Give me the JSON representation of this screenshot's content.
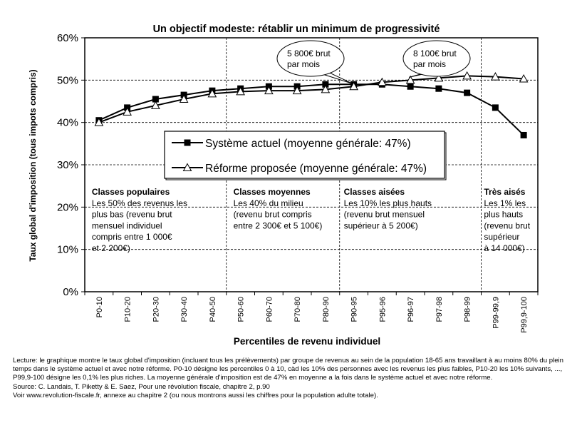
{
  "chart_data": {
    "type": "line",
    "title": "Un objectif modeste: rétablir un minimum de progressivité",
    "xlabel": "Percentiles de revenu individuel",
    "ylabel": "Taux global d'imposition (tous impots compris)",
    "ylim": [
      0,
      60
    ],
    "yticks": [
      "0%",
      "10%",
      "20%",
      "30%",
      "40%",
      "50%",
      "60%"
    ],
    "categories": [
      "P0-10",
      "P10-20",
      "P20-30",
      "P30-40",
      "P40-50",
      "P50-60",
      "P60-70",
      "P70-80",
      "P80-90",
      "P90-95",
      "P95-96",
      "P96-97",
      "P97-98",
      "P98-99",
      "P99-99,9",
      "P99,9-100"
    ],
    "series": [
      {
        "name": "Système actuel (moyenne générale: 47%)",
        "marker": "filled-square",
        "values": [
          40.5,
          43.5,
          45.5,
          46.5,
          47.5,
          48.0,
          48.5,
          48.5,
          49.0,
          49.0,
          49.0,
          48.5,
          48.0,
          47.0,
          43.5,
          37.0
        ]
      },
      {
        "name": "Réforme proposée (moyenne générale: 47%)",
        "marker": "open-triangle",
        "values": [
          40.0,
          42.5,
          44.0,
          45.5,
          46.8,
          47.3,
          47.5,
          47.5,
          47.8,
          48.5,
          49.5,
          50.0,
          50.5,
          51.0,
          50.8,
          50.3
        ]
      }
    ],
    "callouts": [
      {
        "lines": [
          "5 800€ brut",
          "par mois"
        ],
        "category": "P90-95"
      },
      {
        "lines": [
          "8 100€ brut",
          "par mois"
        ],
        "category": "P96-97"
      }
    ],
    "groups": [
      {
        "title": "Classes populaires",
        "lines": [
          "Les 50% des revenus les",
          "plus bas (revenu brut",
          "mensuel individuel",
          "compris entre 1 000€",
          "et 2 200€)"
        ]
      },
      {
        "title": "Classes moyennes",
        "lines": [
          "Les 40% du milieu",
          "(revenu brut compris",
          "entre 2 300€ et 5 100€)"
        ]
      },
      {
        "title": "Classes aisées",
        "lines": [
          "Les 10% les plus hauts",
          "(revenu brut mensuel",
          "supérieur à 5 200€)"
        ]
      },
      {
        "title": "Très aisés",
        "lines": [
          "Les 1% les",
          "plus hauts",
          "(revenu brut",
          "supérieur",
          "à 14 000€)"
        ]
      }
    ],
    "grid": true,
    "legend_position": "center-left"
  },
  "footer": {
    "lecture": "Lecture: le graphique montre le taux global d'imposition (incluant tous les prélèvements) par groupe de revenus au sein de la population 18-65 ans travaillant à au moins 80% du plein temps dans le système actuel et avec notre réforme. P0-10 désigne les percentiles 0 à 10, càd les 10% des personnes avec les revenus les plus faibles, P10-20 les 10% suivants, ..., P99,9-100 désigne les 0,1% les plus riches. La moyenne générale d'imposition est de 47% en moyenne a la fois dans le système actuel et avec notre réforme.",
    "source": "Source: C. Landais, T. Piketty & E. Saez, Pour une révolution fiscale, chapitre 2, p.90",
    "voir": "Voir www.revolution-fiscale.fr, annexe au chapitre 2 (ou nous montrons aussi les chiffres pour la population adulte totale)."
  },
  "colors": {
    "line": "#000000",
    "grid": "#000000",
    "background": "#ffffff"
  }
}
